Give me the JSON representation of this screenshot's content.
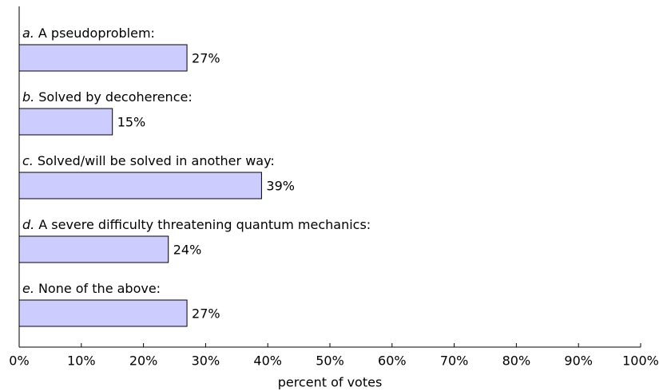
{
  "chart_data": {
    "type": "barh",
    "category_prefixes": [
      "a.",
      "b.",
      "c.",
      "d.",
      "e."
    ],
    "categories": [
      "A pseudoproblem:",
      "Solved by decoherence:",
      "Solved/will be solved in another way:",
      "A severe difficulty threatening quantum mechanics:",
      "None of the above:"
    ],
    "values": [
      27,
      15,
      39,
      24,
      27
    ],
    "value_labels": [
      "27%",
      "15%",
      "39%",
      "24%",
      "27%"
    ],
    "color": "#ccccff",
    "xlabel": "percent of votes",
    "xlim": [
      0,
      100
    ],
    "xticks": [
      {
        "value": 0,
        "label": "0%"
      },
      {
        "value": 10,
        "label": "10%"
      },
      {
        "value": 20,
        "label": "20%"
      },
      {
        "value": 30,
        "label": "30%"
      },
      {
        "value": 40,
        "label": "40%"
      },
      {
        "value": 50,
        "label": "50%"
      },
      {
        "value": 60,
        "label": "60%"
      },
      {
        "value": 70,
        "label": "70%"
      },
      {
        "value": 80,
        "label": "80%"
      },
      {
        "value": 90,
        "label": "90%"
      },
      {
        "value": 100,
        "label": "100%"
      }
    ]
  }
}
